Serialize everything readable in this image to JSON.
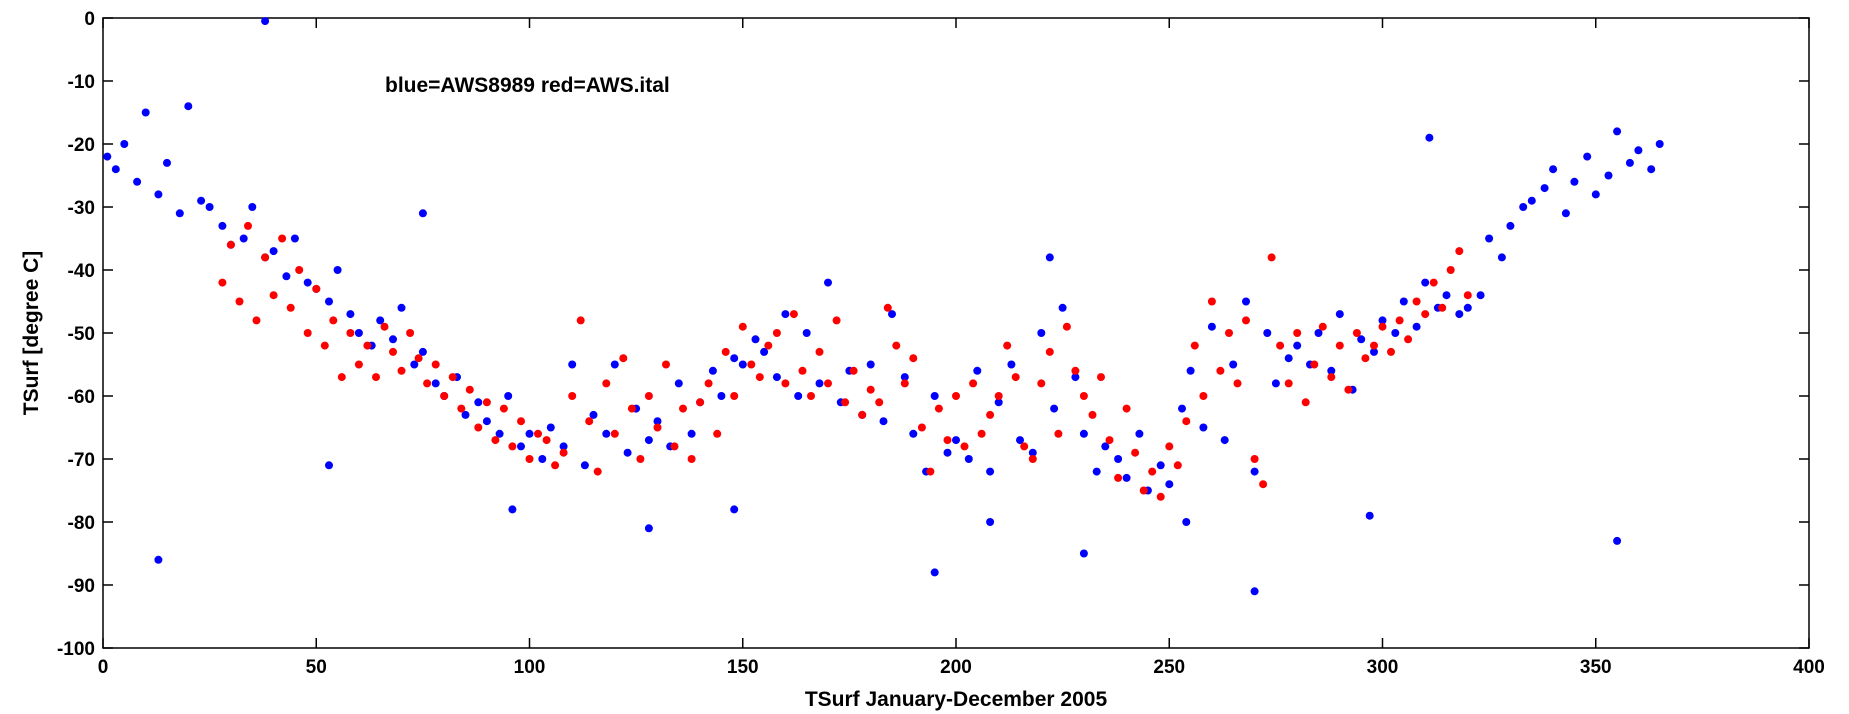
{
  "chart_data": {
    "type": "scatter",
    "xlabel": "TSurf January-December 2005",
    "ylabel": "TSurf [degree C]",
    "annotation": "blue=AWS8989 red=AWS.ital",
    "xlim": [
      0,
      400
    ],
    "ylim": [
      -100,
      0
    ],
    "xticks": [
      0,
      50,
      100,
      150,
      200,
      250,
      300,
      350,
      400
    ],
    "yticks": [
      0,
      -10,
      -20,
      -30,
      -40,
      -50,
      -60,
      -70,
      -80,
      -90,
      -100
    ],
    "grid": false,
    "marker": "dot",
    "series": [
      {
        "color": "#0000ff",
        "x": [
          1,
          3,
          5,
          8,
          10,
          13,
          15,
          18,
          20,
          23,
          25,
          28,
          30,
          33,
          35,
          38,
          40,
          43,
          45,
          48,
          50,
          53,
          55,
          58,
          60,
          63,
          65,
          68,
          70,
          73,
          75,
          78,
          80,
          83,
          85,
          88,
          90,
          93,
          95,
          98,
          100,
          103,
          105,
          108,
          110,
          113,
          115,
          118,
          120,
          123,
          125,
          128,
          130,
          133,
          135,
          138,
          140,
          143,
          145,
          148,
          150,
          153,
          155,
          158,
          160,
          163,
          165,
          168,
          170,
          173,
          175,
          178,
          180,
          183,
          185,
          188,
          190,
          193,
          195,
          198,
          200,
          203,
          205,
          208,
          210,
          213,
          215,
          218,
          220,
          223,
          225,
          228,
          230,
          233,
          235,
          238,
          240,
          243,
          245,
          248,
          250,
          253,
          255,
          258,
          260,
          263,
          265,
          268,
          270,
          273,
          275,
          278,
          280,
          283,
          285,
          288,
          290,
          293,
          295,
          298,
          300,
          303,
          305,
          308,
          310,
          313,
          315,
          318,
          320,
          323,
          325,
          328,
          330,
          333,
          335,
          338,
          340,
          343,
          345,
          348,
          350,
          353,
          355,
          358,
          360,
          363,
          365,
          38,
          13,
          53,
          75,
          96,
          148,
          128,
          195,
          208,
          222,
          230,
          254,
          270,
          297,
          311,
          355
        ],
        "y": [
          -22,
          -24,
          -20,
          -26,
          -15,
          -28,
          -23,
          -31,
          -14,
          -29,
          -30,
          -33,
          -36,
          -35,
          -30,
          -38,
          -37,
          -41,
          -35,
          -42,
          -43,
          -45,
          -40,
          -47,
          -50,
          -52,
          -48,
          -51,
          -46,
          -55,
          -53,
          -58,
          -60,
          -57,
          -63,
          -61,
          -64,
          -66,
          -60,
          -68,
          -66,
          -70,
          -65,
          -68,
          -55,
          -71,
          -63,
          -66,
          -55,
          -69,
          -62,
          -67,
          -64,
          -68,
          -58,
          -66,
          -61,
          -56,
          -60,
          -54,
          -55,
          -51,
          -53,
          -57,
          -47,
          -60,
          -50,
          -58,
          -42,
          -61,
          -56,
          -63,
          -55,
          -64,
          -47,
          -57,
          -66,
          -72,
          -60,
          -69,
          -67,
          -70,
          -56,
          -72,
          -61,
          -55,
          -67,
          -69,
          -50,
          -62,
          -46,
          -57,
          -66,
          -72,
          -68,
          -70,
          -73,
          -66,
          -75,
          -71,
          -74,
          -62,
          -56,
          -65,
          -49,
          -67,
          -55,
          -45,
          -72,
          -50,
          -58,
          -54,
          -52,
          -55,
          -50,
          -56,
          -47,
          -59,
          -51,
          -53,
          -48,
          -50,
          -45,
          -49,
          -42,
          -46,
          -44,
          -47,
          -46,
          -44,
          -35,
          -38,
          -33,
          -30,
          -29,
          -27,
          -24,
          -31,
          -26,
          -22,
          -28,
          -25,
          -18,
          -23,
          -21,
          -24,
          -20,
          -0.5,
          -86,
          -71,
          -31,
          -78,
          -78,
          -81,
          -88,
          -80,
          -38,
          -85,
          -80,
          -91,
          -79,
          -19,
          -83
        ]
      },
      {
        "color": "#ff0000",
        "x": [
          28,
          30,
          32,
          34,
          36,
          38,
          40,
          42,
          44,
          46,
          48,
          50,
          52,
          54,
          56,
          58,
          60,
          62,
          64,
          66,
          68,
          70,
          72,
          74,
          76,
          78,
          80,
          82,
          84,
          86,
          88,
          90,
          92,
          94,
          96,
          98,
          100,
          102,
          104,
          106,
          108,
          110,
          112,
          114,
          116,
          118,
          120,
          122,
          124,
          126,
          128,
          130,
          132,
          134,
          136,
          138,
          140,
          142,
          144,
          146,
          148,
          150,
          152,
          154,
          156,
          158,
          160,
          162,
          164,
          166,
          168,
          170,
          172,
          174,
          176,
          178,
          180,
          182,
          184,
          186,
          188,
          190,
          192,
          194,
          196,
          198,
          200,
          202,
          204,
          206,
          208,
          210,
          212,
          214,
          216,
          218,
          220,
          222,
          224,
          226,
          228,
          230,
          232,
          234,
          236,
          238,
          240,
          242,
          244,
          246,
          248,
          250,
          252,
          254,
          256,
          258,
          260,
          262,
          264,
          266,
          268,
          270,
          272,
          274,
          276,
          278,
          280,
          282,
          284,
          286,
          288,
          290,
          292,
          294,
          296,
          298,
          300,
          302,
          304,
          306,
          308,
          310,
          312,
          314,
          316,
          318,
          320
        ],
        "y": [
          -42,
          -36,
          -45,
          -33,
          -48,
          -38,
          -44,
          -35,
          -46,
          -40,
          -50,
          -43,
          -52,
          -48,
          -57,
          -50,
          -55,
          -52,
          -57,
          -49,
          -53,
          -56,
          -50,
          -54,
          -58,
          -55,
          -60,
          -57,
          -62,
          -59,
          -65,
          -61,
          -67,
          -62,
          -68,
          -64,
          -70,
          -66,
          -67,
          -71,
          -69,
          -60,
          -48,
          -64,
          -72,
          -58,
          -66,
          -54,
          -62,
          -70,
          -60,
          -65,
          -55,
          -68,
          -62,
          -70,
          -61,
          -58,
          -66,
          -53,
          -60,
          -49,
          -55,
          -57,
          -52,
          -50,
          -58,
          -47,
          -56,
          -60,
          -53,
          -58,
          -48,
          -61,
          -56,
          -63,
          -59,
          -61,
          -46,
          -52,
          -58,
          -54,
          -65,
          -72,
          -62,
          -67,
          -60,
          -68,
          -58,
          -66,
          -63,
          -60,
          -52,
          -57,
          -68,
          -70,
          -58,
          -53,
          -66,
          -49,
          -56,
          -60,
          -63,
          -57,
          -67,
          -73,
          -62,
          -69,
          -75,
          -72,
          -76,
          -68,
          -71,
          -64,
          -52,
          -60,
          -45,
          -56,
          -50,
          -58,
          -48,
          -70,
          -74,
          -38,
          -52,
          -58,
          -50,
          -61,
          -55,
          -49,
          -57,
          -52,
          -59,
          -50,
          -54,
          -52,
          -49,
          -53,
          -48,
          -51,
          -45,
          -47,
          -42,
          -46,
          -40,
          -37,
          -44
        ]
      }
    ]
  }
}
